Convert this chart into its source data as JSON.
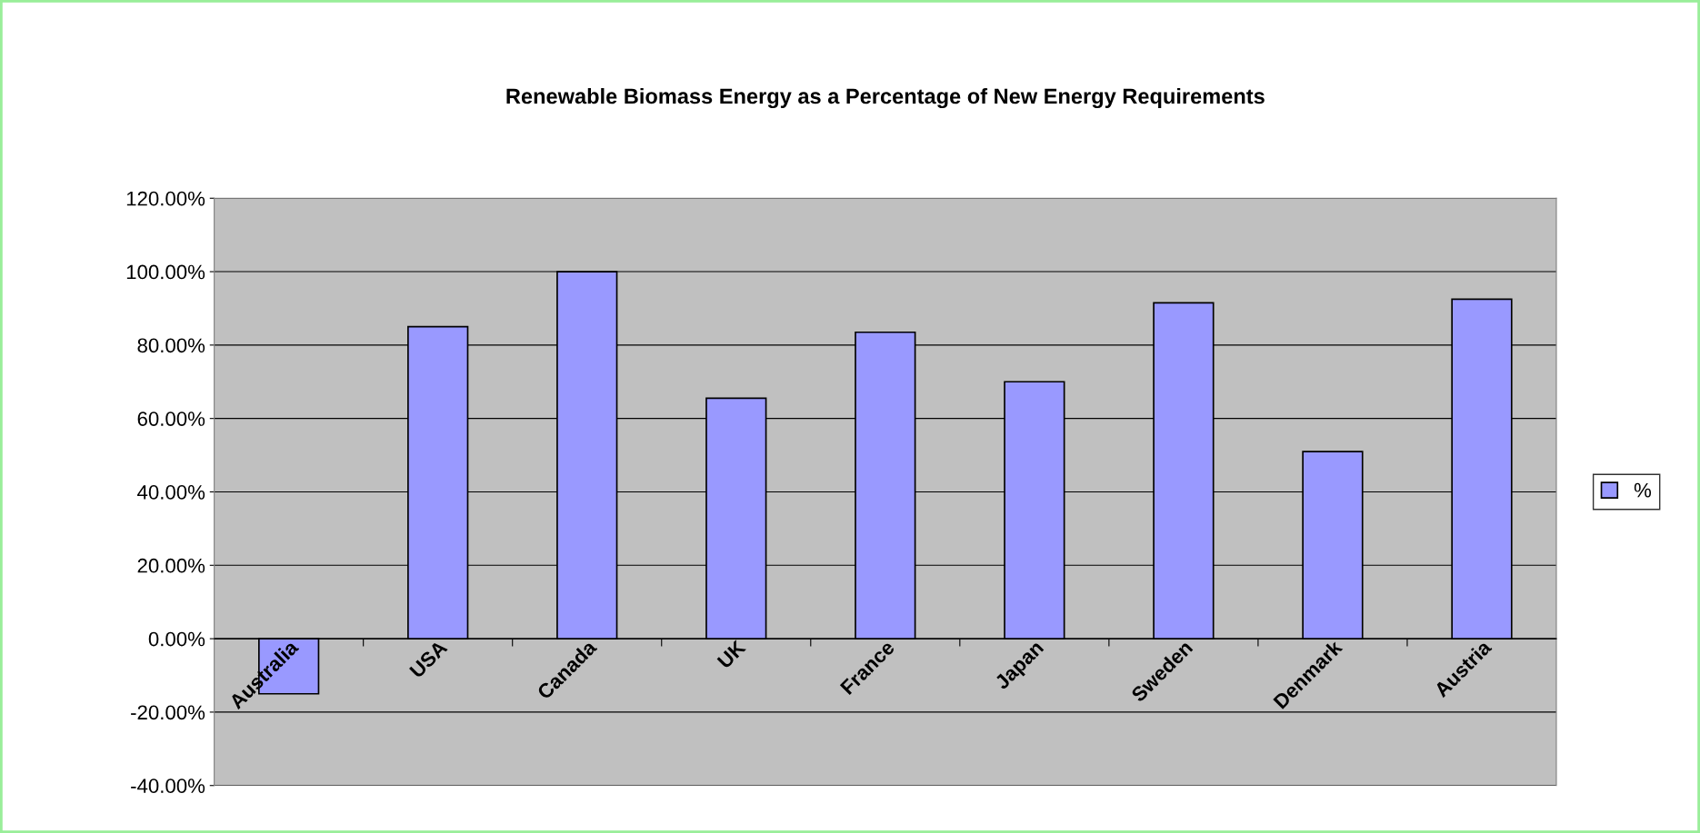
{
  "chart_data": {
    "type": "bar",
    "title": "Renewable Biomass Energy as a Percentage of New Energy Requirements",
    "categories": [
      "Australia",
      "USA",
      "Canada",
      "UK",
      "France",
      "Japan",
      "Sweden",
      "Denmark",
      "Austria"
    ],
    "series": [
      {
        "name": "%",
        "color": "#9999ff",
        "values": [
          -15,
          85,
          100,
          65.5,
          83.5,
          70,
          91.5,
          51,
          92.5
        ]
      }
    ],
    "ylim": [
      -40,
      120
    ],
    "yticks": [
      {
        "value": -40,
        "label": "-40.00%"
      },
      {
        "value": -20,
        "label": "-20.00%"
      },
      {
        "value": 0,
        "label": "0.00%"
      },
      {
        "value": 20,
        "label": "20.00%"
      },
      {
        "value": 40,
        "label": "40.00%"
      },
      {
        "value": 60,
        "label": "60.00%"
      },
      {
        "value": 80,
        "label": "80.00%"
      },
      {
        "value": 100,
        "label": "100.00%"
      },
      {
        "value": 120,
        "label": "120.00%"
      }
    ],
    "grid": "y",
    "legend": "right"
  }
}
